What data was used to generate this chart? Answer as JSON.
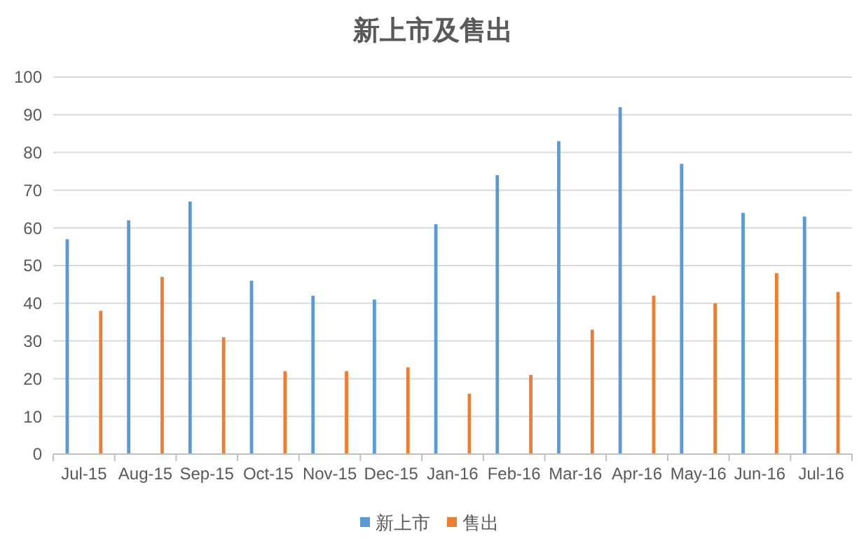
{
  "chart_data": {
    "type": "bar",
    "title": "新上市及售出",
    "categories": [
      "Jul-15",
      "Aug-15",
      "Sep-15",
      "Oct-15",
      "Nov-15",
      "Dec-15",
      "Jan-16",
      "Feb-16",
      "Mar-16",
      "Apr-16",
      "May-16",
      "Jun-16",
      "Jul-16"
    ],
    "series": [
      {
        "name": "新上市",
        "color": "#5b9bd5",
        "values": [
          57,
          62,
          67,
          46,
          42,
          41,
          61,
          74,
          83,
          92,
          77,
          64,
          63
        ]
      },
      {
        "name": "售出",
        "color": "#ed7d31",
        "values": [
          38,
          47,
          31,
          22,
          22,
          23,
          16,
          21,
          33,
          42,
          40,
          48,
          43
        ]
      }
    ],
    "ylim": [
      0,
      100
    ],
    "yticks": [
      0,
      10,
      20,
      30,
      40,
      50,
      60,
      70,
      80,
      90,
      100
    ],
    "grid": "y",
    "legend": "bottom"
  }
}
